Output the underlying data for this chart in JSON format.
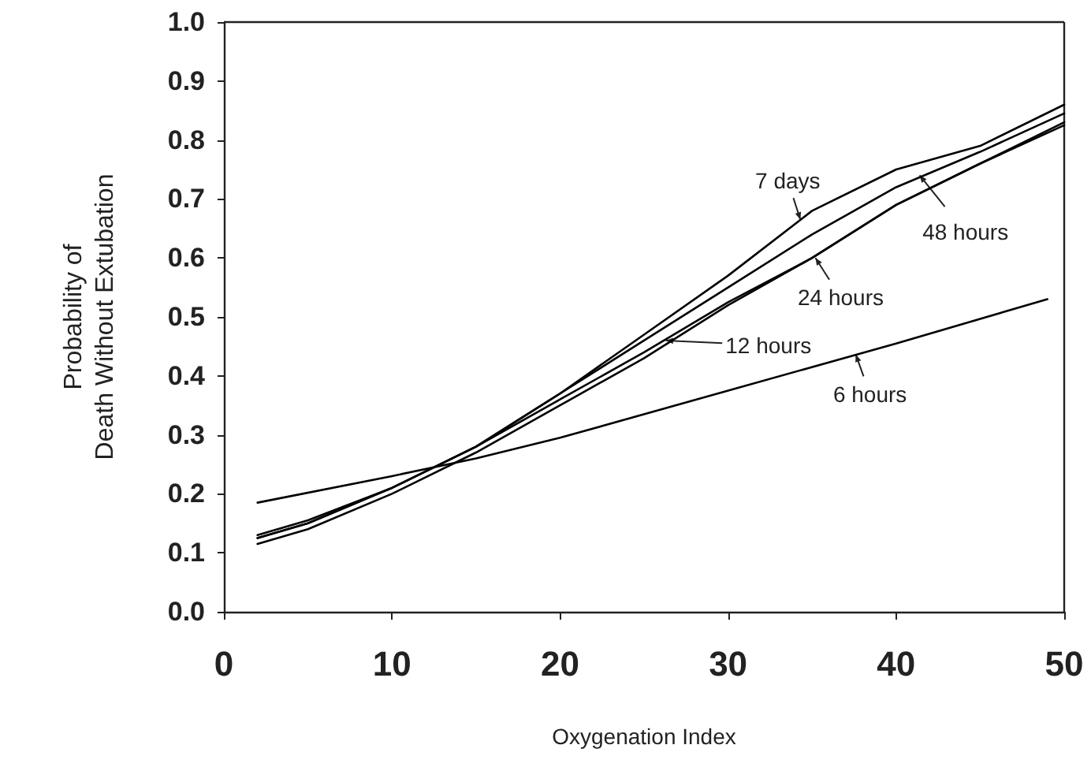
{
  "chart_data": {
    "type": "line",
    "xlabel": "Oxygenation Index",
    "ylabel": "Probability of\nDeath Without Extubation",
    "x": [
      2,
      5,
      10,
      15,
      20,
      25,
      30,
      35,
      40,
      45,
      50
    ],
    "series": [
      {
        "color": "#000000",
        "values": [
          0.13,
          0.155,
          0.21,
          0.28,
          0.37,
          0.47,
          0.57,
          0.68,
          0.75,
          0.79,
          0.86
        ]
      },
      {
        "color": "#000000",
        "values": [
          0.125,
          0.15,
          0.21,
          0.28,
          0.37,
          0.46,
          0.55,
          0.64,
          0.72,
          0.78,
          0.845
        ]
      },
      {
        "color": "#000000",
        "values": [
          0.125,
          0.15,
          0.21,
          0.28,
          0.36,
          0.44,
          0.525,
          0.6,
          0.69,
          0.76,
          0.825
        ]
      },
      {
        "color": "#000000",
        "values": [
          0.115,
          0.14,
          0.2,
          0.27,
          0.35,
          0.43,
          0.52,
          0.6,
          0.69,
          0.76,
          0.83
        ]
      },
      {
        "color": "#000000",
        "x": [
          2,
          10,
          15,
          20,
          30,
          40,
          49
        ],
        "values": [
          0.185,
          0.23,
          0.26,
          0.295,
          0.375,
          0.455,
          0.53
        ]
      }
    ],
    "annotations": [
      {
        "text": "7 days",
        "x": 34.3,
        "y": 0.665
      },
      {
        "text": "48 hours",
        "x": 41.4,
        "y": 0.74
      },
      {
        "text": "24 hours",
        "x": 35.2,
        "y": 0.6
      },
      {
        "text": "12 hours",
        "x": 26.3,
        "y": 0.46
      },
      {
        "text": "6 hours",
        "x": 37.6,
        "y": 0.436
      }
    ],
    "xlim": [
      0,
      50
    ],
    "xticks": [
      0,
      10,
      20,
      30,
      40,
      50
    ],
    "ylim": [
      0,
      1
    ],
    "yticks": [
      {
        "value": 0,
        "label": "0.0"
      },
      {
        "value": 0.1,
        "label": "0.1"
      },
      {
        "value": 0.2,
        "label": "0.2"
      },
      {
        "value": 0.3,
        "label": "0.3"
      },
      {
        "value": 0.4,
        "label": "0.4"
      },
      {
        "value": 0.5,
        "label": "0.5"
      },
      {
        "value": 0.6,
        "label": "0.6"
      },
      {
        "value": 0.7,
        "label": "0.7"
      },
      {
        "value": 0.8,
        "label": "0.8"
      },
      {
        "value": 0.9,
        "label": "0.9"
      },
      {
        "value": 1,
        "label": "1.0"
      }
    ],
    "grid": false,
    "legend": false,
    "marker": "none",
    "line_style": "solid"
  }
}
